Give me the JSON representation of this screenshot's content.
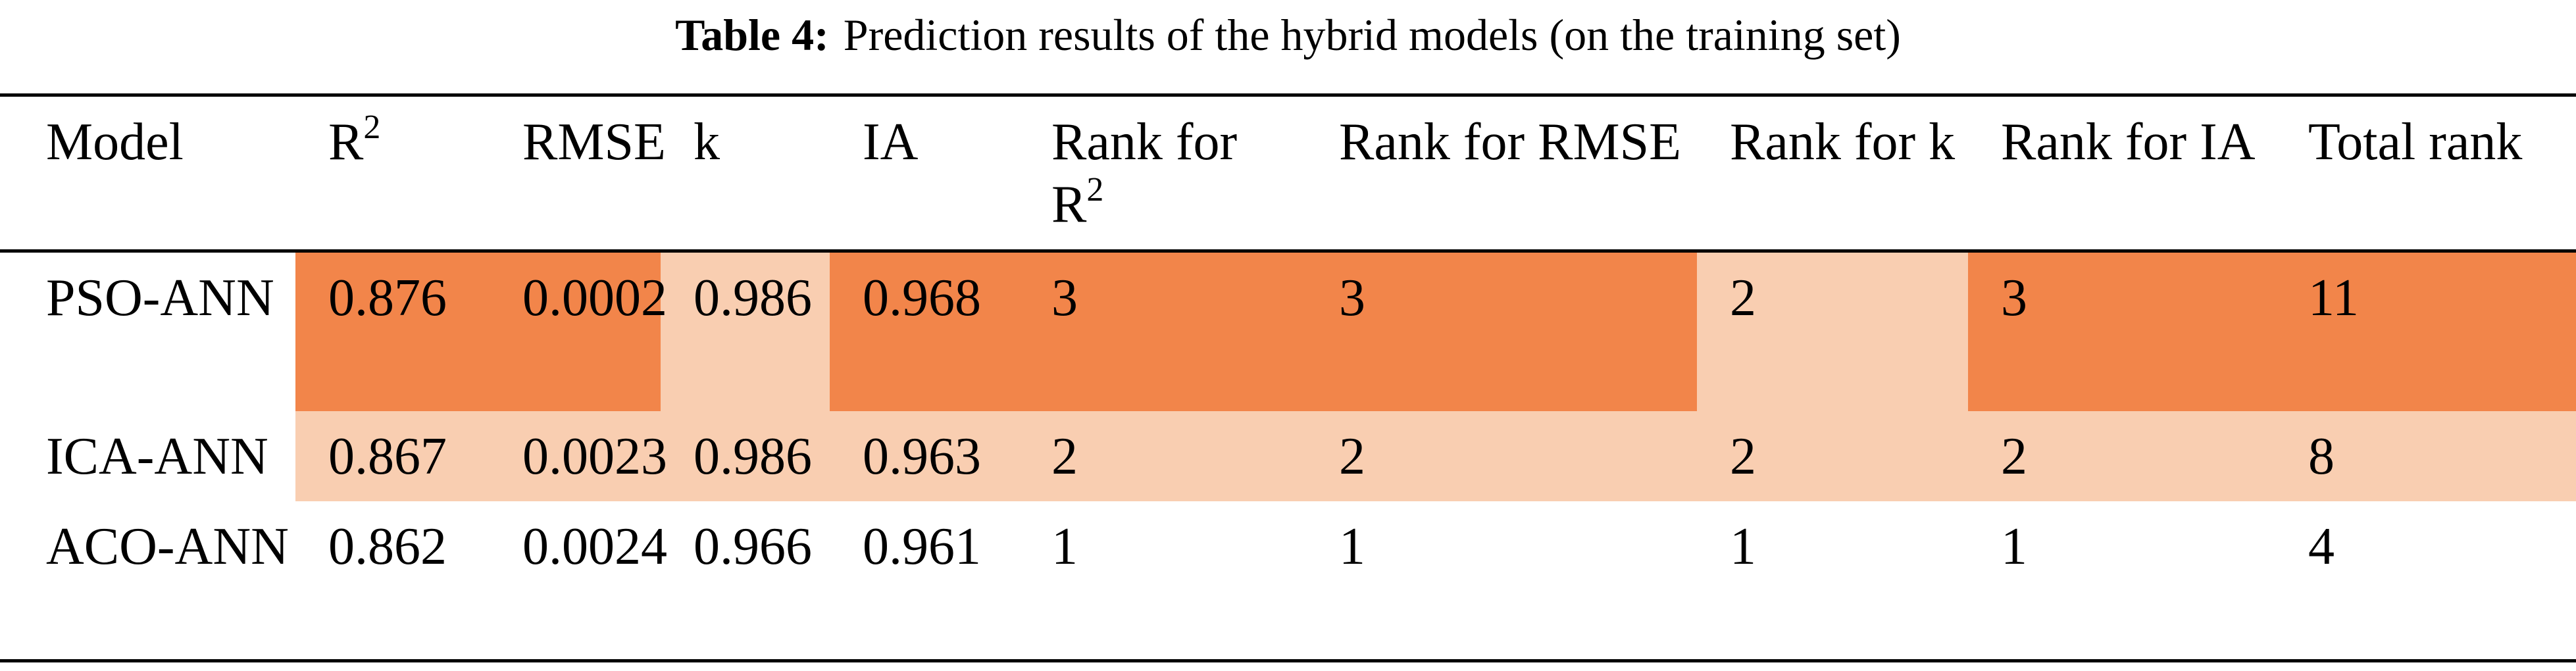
{
  "title": {
    "label": "Table 4:",
    "text": "Prediction results of the hybrid models (on the training set)"
  },
  "table": {
    "headers": [
      {
        "text": "Model"
      },
      {
        "text": "R",
        "sup": "2"
      },
      {
        "text": "RMSE"
      },
      {
        "text": "k"
      },
      {
        "text": "IA"
      },
      {
        "text": "Rank for R",
        "sup": "2"
      },
      {
        "text": "Rank for RMSE"
      },
      {
        "text": "Rank for k"
      },
      {
        "text": "Rank for IA"
      },
      {
        "text": "Total rank"
      }
    ],
    "rows": [
      [
        "PSO-ANN",
        "0.876",
        "0.0002",
        "0.986",
        "0.968",
        "3",
        "3",
        "2",
        "3",
        "11"
      ],
      [
        "ICA-ANN",
        "0.867",
        "0.0023",
        "0.986",
        "0.963",
        "2",
        "2",
        "2",
        "2",
        "8"
      ],
      [
        "ACO-ANN",
        "0.862",
        "0.0024",
        "0.966",
        "0.961",
        "1",
        "1",
        "1",
        "1",
        "4"
      ]
    ]
  }
}
